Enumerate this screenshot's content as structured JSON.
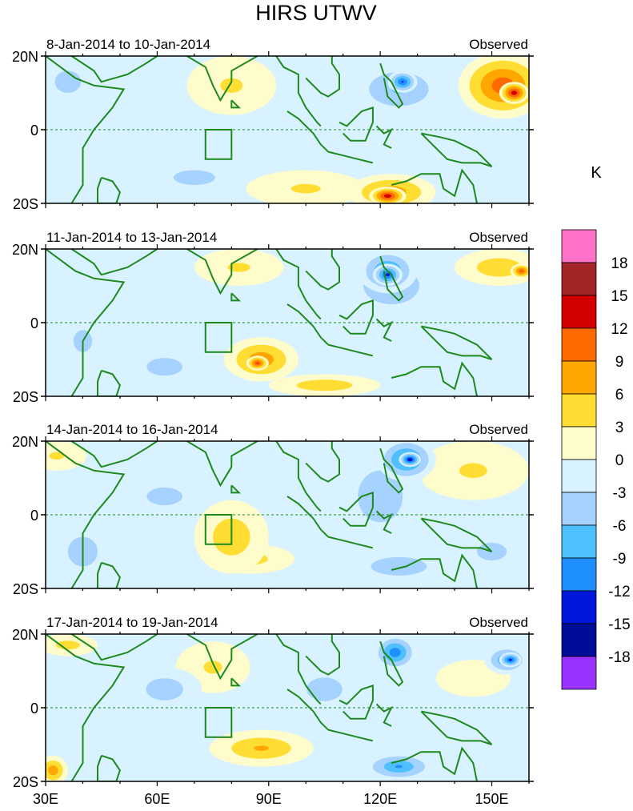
{
  "chart_data": {
    "type": "heatmap",
    "title": "HIRS UTWV",
    "units": "K",
    "colorbar": {
      "levels": [
        18,
        15,
        12,
        9,
        6,
        3,
        0,
        -3,
        -6,
        -9,
        -12,
        -15,
        -18
      ],
      "colors": [
        "#ff70c8",
        "#a32626",
        "#d40000",
        "#ff6a00",
        "#ffa600",
        "#ffdd33",
        "#fffccc",
        "#d8f2ff",
        "#a6d2ff",
        "#4fc0ff",
        "#1f8fff",
        "#0017d9",
        "#000d99",
        "#9933ff"
      ]
    },
    "x_axis": {
      "ticks": [
        "30E",
        "60E",
        "90E",
        "120E",
        "150E"
      ],
      "tick_values": [
        30,
        60,
        90,
        120,
        150
      ],
      "range": [
        30,
        160
      ]
    },
    "y_axis": {
      "ticks": [
        "20N",
        "0",
        "20S"
      ],
      "tick_values": [
        20,
        0,
        -20
      ],
      "range": [
        -20,
        20
      ]
    },
    "box_region": {
      "lon": [
        73,
        80
      ],
      "lat": [
        -8,
        0
      ]
    },
    "panels": [
      {
        "date_range": "8-Jan-2014 to 10-Jan-2014",
        "label": "Observed",
        "blobs": [
          {
            "lon": 153,
            "lat": 12,
            "rx": 12,
            "ry": 9,
            "value": 12
          },
          {
            "lon": 156,
            "lat": 10,
            "rx": 4,
            "ry": 3,
            "value": 15
          },
          {
            "lon": 123,
            "lat": -17,
            "rx": 12,
            "ry": 5,
            "value": 9
          },
          {
            "lon": 122,
            "lat": -18,
            "rx": 5,
            "ry": 2.5,
            "value": 15
          },
          {
            "lon": 80,
            "lat": 12,
            "rx": 12,
            "ry": 8,
            "value": 4
          },
          {
            "lon": 100,
            "lat": -16,
            "rx": 16,
            "ry": 5,
            "value": 4
          },
          {
            "lon": 125,
            "lat": 11,
            "rx": 14,
            "ry": 8,
            "value": -7
          },
          {
            "lon": 126,
            "lat": 13,
            "rx": 4,
            "ry": 3,
            "value": -13
          },
          {
            "lon": 70,
            "lat": -13,
            "rx": 14,
            "ry": 5,
            "value": -5
          },
          {
            "lon": 36,
            "lat": 13,
            "rx": 7,
            "ry": 6,
            "value": -6
          },
          {
            "lon": 90,
            "lat": -5,
            "rx": 20,
            "ry": 8,
            "value": -2
          }
        ]
      },
      {
        "date_range": "11-Jan-2014 to 13-Jan-2014",
        "label": "Observed",
        "blobs": [
          {
            "lon": 122,
            "lat": 14,
            "rx": 8,
            "ry": 6,
            "value": -11
          },
          {
            "lon": 122,
            "lat": 13,
            "rx": 4,
            "ry": 3,
            "value": -14
          },
          {
            "lon": 123,
            "lat": 10,
            "rx": 15,
            "ry": 10,
            "value": -6
          },
          {
            "lon": 88,
            "lat": -10,
            "rx": 10,
            "ry": 6,
            "value": 9
          },
          {
            "lon": 87,
            "lat": -11,
            "rx": 3,
            "ry": 2,
            "value": 13
          },
          {
            "lon": 105,
            "lat": -17,
            "rx": 15,
            "ry": 3,
            "value": 6
          },
          {
            "lon": 152,
            "lat": 15,
            "rx": 12,
            "ry": 5,
            "value": 6
          },
          {
            "lon": 158,
            "lat": 14,
            "rx": 3,
            "ry": 2,
            "value": 12
          },
          {
            "lon": 82,
            "lat": 15,
            "rx": 12,
            "ry": 5,
            "value": 4
          },
          {
            "lon": 40,
            "lat": -5,
            "rx": 10,
            "ry": 12,
            "value": -4
          },
          {
            "lon": 62,
            "lat": -12,
            "rx": 12,
            "ry": 6,
            "value": -5
          },
          {
            "lon": 140,
            "lat": 0,
            "rx": 15,
            "ry": 6,
            "value": -2
          }
        ]
      },
      {
        "date_range": "14-Jan-2014 to 16-Jan-2014",
        "label": "Observed",
        "blobs": [
          {
            "lon": 127,
            "lat": 15,
            "rx": 8,
            "ry": 6,
            "value": -12
          },
          {
            "lon": 128,
            "lat": 15,
            "rx": 3,
            "ry": 2,
            "value": -16
          },
          {
            "lon": 120,
            "lat": 5,
            "rx": 12,
            "ry": 14,
            "value": -6
          },
          {
            "lon": 80,
            "lat": -6,
            "rx": 10,
            "ry": 10,
            "value": 6
          },
          {
            "lon": 85,
            "lat": -12,
            "rx": 12,
            "ry": 4,
            "value": 5
          },
          {
            "lon": 145,
            "lat": 12,
            "rx": 15,
            "ry": 8,
            "value": 4
          },
          {
            "lon": 33,
            "lat": 16,
            "rx": 8,
            "ry": 4,
            "value": 4
          },
          {
            "lon": 62,
            "lat": 5,
            "rx": 12,
            "ry": 6,
            "value": -5
          },
          {
            "lon": 40,
            "lat": -10,
            "rx": 10,
            "ry": 10,
            "value": -5
          },
          {
            "lon": 125,
            "lat": -14,
            "rx": 15,
            "ry": 5,
            "value": -6
          },
          {
            "lon": 150,
            "lat": -10,
            "rx": 10,
            "ry": 6,
            "value": -5
          }
        ]
      },
      {
        "date_range": "17-Jan-2014 to 19-Jan-2014",
        "label": "Observed",
        "blobs": [
          {
            "lon": 124,
            "lat": 15,
            "rx": 6,
            "ry": 5,
            "value": -12
          },
          {
            "lon": 154,
            "lat": 13,
            "rx": 6,
            "ry": 4,
            "value": -10
          },
          {
            "lon": 155,
            "lat": 13,
            "rx": 3,
            "ry": 2,
            "value": -14
          },
          {
            "lon": 88,
            "lat": -11,
            "rx": 14,
            "ry": 5,
            "value": 7
          },
          {
            "lon": 75,
            "lat": 11,
            "rx": 10,
            "ry": 7,
            "value": 4
          },
          {
            "lon": 36,
            "lat": 17,
            "rx": 8,
            "ry": 3,
            "value": 5
          },
          {
            "lon": 32,
            "lat": -17,
            "rx": 4,
            "ry": 4,
            "value": 9
          },
          {
            "lon": 125,
            "lat": -16,
            "rx": 10,
            "ry": 4,
            "value": -10
          },
          {
            "lon": 62,
            "lat": 5,
            "rx": 10,
            "ry": 6,
            "value": -6
          },
          {
            "lon": 105,
            "lat": 5,
            "rx": 12,
            "ry": 8,
            "value": -5
          },
          {
            "lon": 140,
            "lat": 0,
            "rx": 12,
            "ry": 5,
            "value": -2
          },
          {
            "lon": 145,
            "lat": 8,
            "rx": 10,
            "ry": 5,
            "value": 3
          }
        ]
      }
    ]
  }
}
